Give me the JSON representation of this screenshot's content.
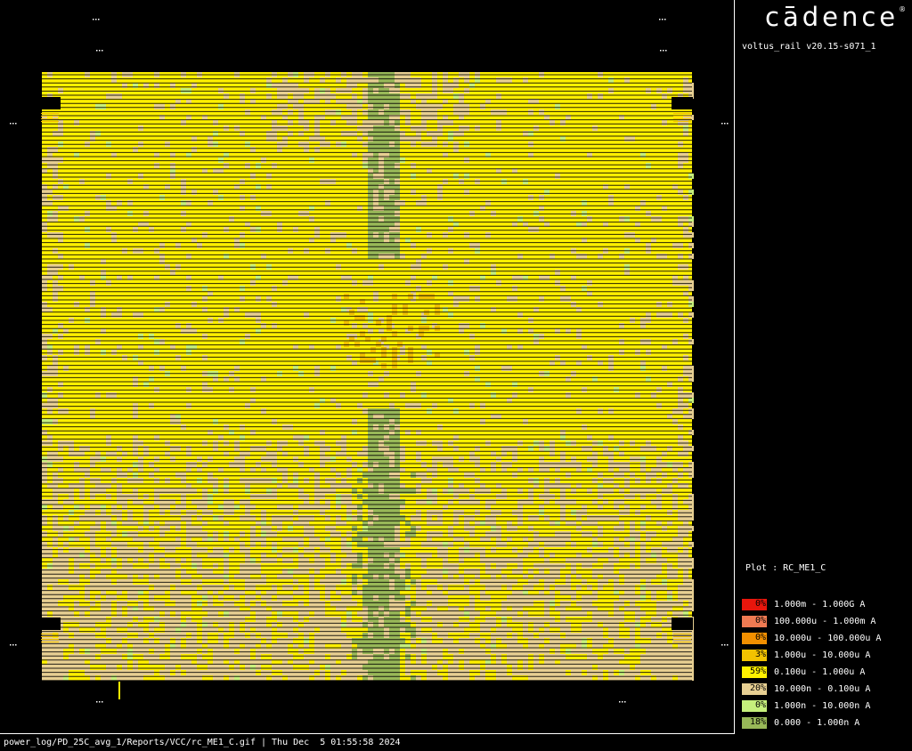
{
  "app": {
    "logo_text": "cadence",
    "version": "voltus_rail v20.15-s071_1"
  },
  "plot": {
    "label": "Plot : RC_ME1_C"
  },
  "legend": [
    {
      "pct": "0%",
      "range": "1.000m - 1.000G A",
      "color": "#e8160c"
    },
    {
      "pct": "0%",
      "range": "100.000u - 1.000m A",
      "color": "#ef7a52"
    },
    {
      "pct": "0%",
      "range": "10.000u - 100.000u A",
      "color": "#f29000"
    },
    {
      "pct": "3%",
      "range": "1.000u - 10.000u A",
      "color": "#f2c200"
    },
    {
      "pct": "59%",
      "range": "0.100u - 1.000u A",
      "color": "#fff000"
    },
    {
      "pct": "20%",
      "range": "10.000n - 0.100u A",
      "color": "#e7cf92"
    },
    {
      "pct": "0%",
      "range": "1.000n - 10.000n A",
      "color": "#c6f07c"
    },
    {
      "pct": "18%",
      "range": "0.000 - 1.000n A",
      "color": "#98b858"
    }
  ],
  "footer": "power_log/PD_25C_avg_1/Reports/VCC/rc_ME1_C.gif | Thu Dec  5 01:55:58 2024"
}
